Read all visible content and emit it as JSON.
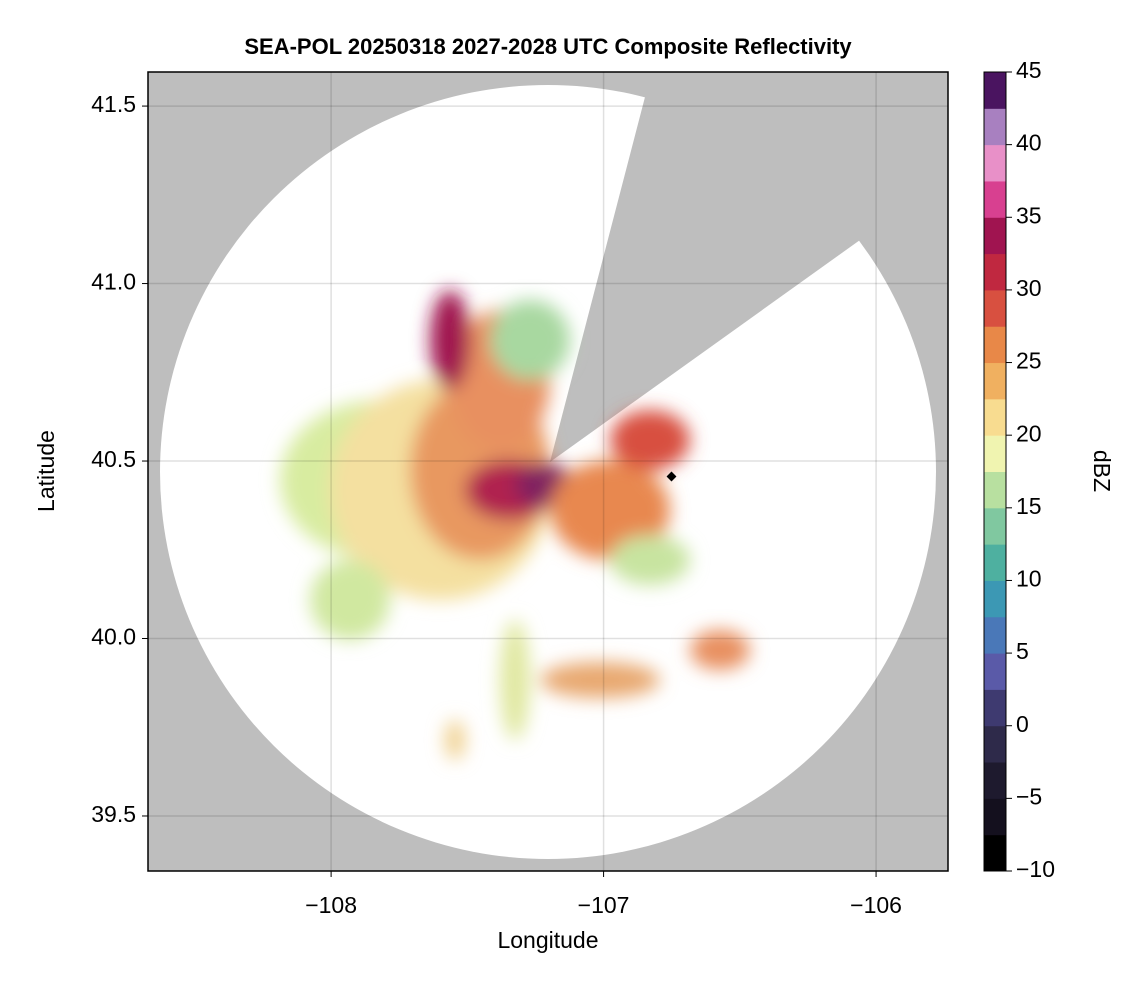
{
  "chart_data": {
    "type": "radar-map",
    "title": "SEA-POL 20250318 2027-2028 UTC Composite Reflectivity",
    "x_label": "Longitude",
    "y_label": "Latitude",
    "xlim": [
      -108.672,
      -105.736
    ],
    "ylim": [
      39.345,
      41.596
    ],
    "xticks": [
      {
        "value": -108,
        "label": "−108"
      },
      {
        "value": -107,
        "label": "−107"
      },
      {
        "value": -106,
        "label": "−106"
      }
    ],
    "yticks": [
      {
        "value": 39.5,
        "label": "39.5"
      },
      {
        "value": 40.0,
        "label": "40.0"
      },
      {
        "value": 40.5,
        "label": "40.5"
      },
      {
        "value": 41.0,
        "label": "41.0"
      },
      {
        "value": 41.5,
        "label": "41.5"
      }
    ],
    "grid": true,
    "colorbar": {
      "label": "dBZ",
      "lim": [
        -10,
        45
      ],
      "ticks": [
        {
          "value": -10,
          "label": "−10"
        },
        {
          "value": -5,
          "label": "−5"
        },
        0,
        5,
        10,
        15,
        20,
        25,
        30,
        35,
        40,
        45
      ],
      "colors": [
        "#000000",
        "#14101e",
        "#1e1a2e",
        "#2e2a4a",
        "#3e3a70",
        "#5a5aa8",
        "#4a78b8",
        "#3c98b4",
        "#4eb0a0",
        "#80c8a0",
        "#b8e0a0",
        "#f0f4b0",
        "#f8dc90",
        "#f0b060",
        "#e88848",
        "#d85040",
        "#c02840",
        "#a01450",
        "#d84090",
        "#e890c8",
        "#a880c0",
        "#4a1460"
      ]
    }
  }
}
